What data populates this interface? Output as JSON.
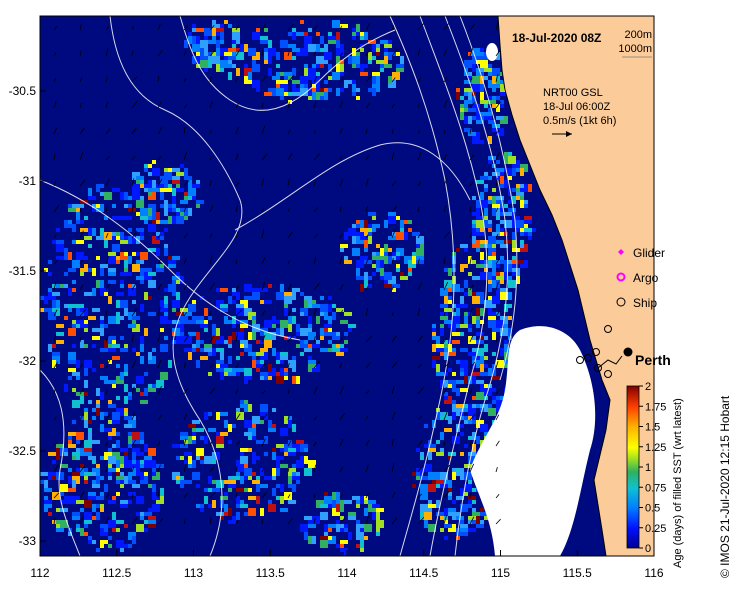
{
  "map": {
    "title": "18-Jul-2020 08Z",
    "depth_labels": [
      "200m",
      "1000m"
    ],
    "current_info": {
      "product": "NRT00 GSL",
      "time": "18-Jul 06:00Z",
      "scale": "0.5m/s (1kt 6h)"
    },
    "x_ticks": [
      "112",
      "112.5",
      "113",
      "113.5",
      "114",
      "114.5",
      "115",
      "115.5",
      "116"
    ],
    "y_ticks": [
      "-30.5",
      "-31",
      "-31.5",
      "-32",
      "-32.5",
      "-33"
    ],
    "legend": {
      "items": [
        {
          "label": "Glider",
          "symbol": "diamond-icon",
          "color": "#ff00ff"
        },
        {
          "label": "Argo",
          "symbol": "circle-icon",
          "color": "#ff00ff"
        },
        {
          "label": "Ship",
          "symbol": "circle-open-icon",
          "color": "#000000"
        }
      ]
    },
    "city": {
      "name": "Perth",
      "lon": 115.86,
      "lat": -31.95
    },
    "colorbar": {
      "ticks": [
        "2",
        "1.75",
        "1.5",
        "1.25",
        "1",
        "0.75",
        "0.5",
        "0.25",
        "0"
      ],
      "title": "Age (days) of filled SST (wrt latest)"
    },
    "credit": "© IMOS 21-Jul-2020 12:15 Hobart",
    "colors": {
      "land": "#fccb9a",
      "deep": "#000a80",
      "coastline": "#000000",
      "contour": "#ffffff"
    }
  }
}
